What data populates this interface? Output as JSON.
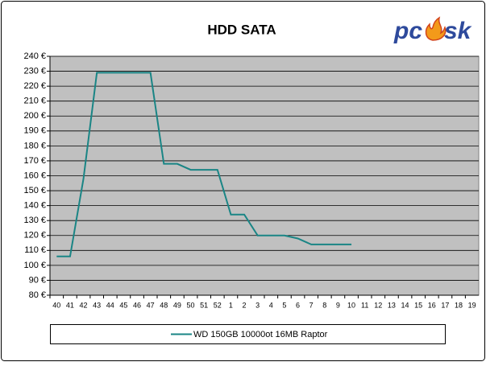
{
  "chart_data": {
    "type": "line",
    "title": "HDD SATA",
    "logo": {
      "left": "pc",
      "right": "sk"
    },
    "categories": [
      "40",
      "41",
      "42",
      "43",
      "44",
      "45",
      "46",
      "47",
      "48",
      "49",
      "50",
      "51",
      "52",
      "1",
      "2",
      "3",
      "4",
      "5",
      "6",
      "7",
      "8",
      "9",
      "10",
      "11",
      "12",
      "13",
      "14",
      "15",
      "16",
      "17",
      "18",
      "19"
    ],
    "series": [
      {
        "name": "WD 150GB 10000ot 16MB Raptor",
        "color": "#1a8585",
        "values": [
          106,
          106,
          158,
          229,
          229,
          229,
          229,
          229,
          168,
          168,
          164,
          164,
          164,
          134,
          134,
          120,
          120,
          120,
          118,
          114,
          114,
          114,
          114,
          null,
          null,
          null,
          null,
          null,
          null,
          null,
          null,
          null
        ]
      }
    ],
    "ylim": [
      80,
      240
    ],
    "yticks": [
      {
        "value": 80,
        "label": "80 €"
      },
      {
        "value": 90,
        "label": "90 €"
      },
      {
        "value": 100,
        "label": "100 €"
      },
      {
        "value": 110,
        "label": "110 €"
      },
      {
        "value": 120,
        "label": "120 €"
      },
      {
        "value": 130,
        "label": "130 €"
      },
      {
        "value": 140,
        "label": "140 €"
      },
      {
        "value": 150,
        "label": "150 €"
      },
      {
        "value": 160,
        "label": "160 €"
      },
      {
        "value": 170,
        "label": "170 €"
      },
      {
        "value": 180,
        "label": "180 €"
      },
      {
        "value": 190,
        "label": "190 €"
      },
      {
        "value": 200,
        "label": "200 €"
      },
      {
        "value": 210,
        "label": "210 €"
      },
      {
        "value": 220,
        "label": "220 €"
      },
      {
        "value": 230,
        "label": "230 €"
      },
      {
        "value": 240,
        "label": "240 €"
      }
    ],
    "grid": true,
    "legend": "bottom",
    "plot_background": "#c0c0c0"
  }
}
